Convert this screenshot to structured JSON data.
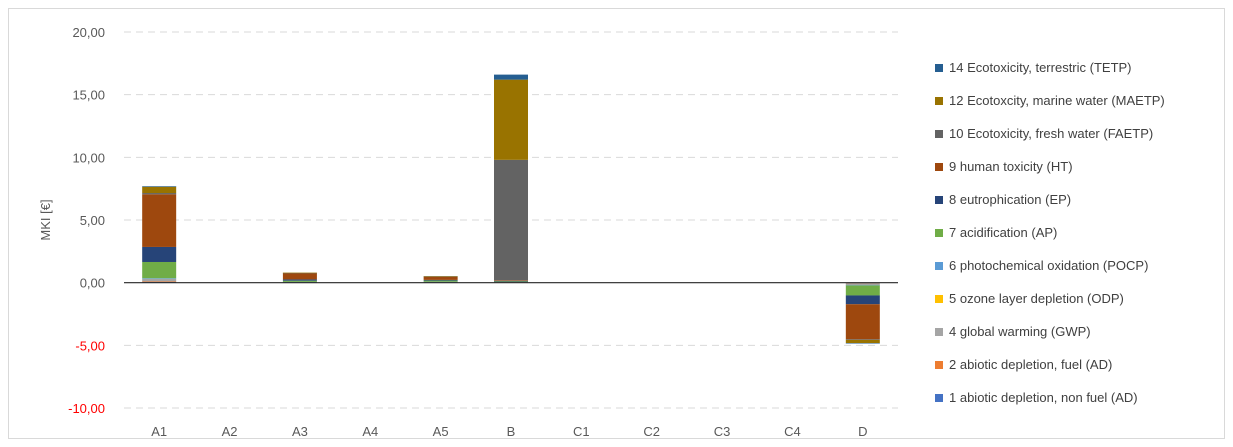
{
  "chart_data": {
    "type": "bar",
    "stacked": true,
    "title": "",
    "xlabel": "",
    "ylabel": "MKI [€]",
    "ylim": [
      -10,
      20
    ],
    "ytick_values": [
      -10,
      -5,
      0,
      5,
      10,
      15,
      20
    ],
    "ytick_labels": [
      "-10,00",
      "-5,00",
      "0,00",
      "5,00",
      "10,00",
      "15,00",
      "20,00"
    ],
    "negative_tick_color": "#ff0000",
    "grid": "horizontal-dashed",
    "legend_position": "right",
    "categories": [
      "A1",
      "A2",
      "A3",
      "A4",
      "A5",
      "B",
      "C1",
      "C2",
      "C3",
      "C4",
      "D"
    ],
    "series": [
      {
        "name": "1 abiotic depletion, non fuel (AD)",
        "color": "#4472c4",
        "values": [
          0.05,
          0,
          0,
          0,
          0,
          0,
          0,
          0,
          0,
          0,
          -0.02
        ]
      },
      {
        "name": "2 abiotic depletion, fuel (AD)",
        "color": "#ed7d31",
        "values": [
          0.05,
          0,
          0.01,
          0,
          0.01,
          0,
          0,
          0,
          0,
          0,
          -0.03
        ]
      },
      {
        "name": "4 global warming (GWP)",
        "color": "#a5a5a5",
        "values": [
          0.2,
          0,
          0.04,
          0,
          0.05,
          0.05,
          0,
          0,
          0,
          0,
          -0.15
        ]
      },
      {
        "name": "5 ozone layer depletion (ODP)",
        "color": "#ffc000",
        "values": [
          0.0,
          0,
          0,
          0,
          0,
          0,
          0,
          0,
          0,
          0,
          0
        ]
      },
      {
        "name": "6 photochemical oxidation (POCP)",
        "color": "#5b9bd5",
        "values": [
          0.05,
          0,
          0.01,
          0,
          0.01,
          0,
          0,
          0,
          0,
          0,
          -0.02
        ]
      },
      {
        "name": "7 acidification (AP)",
        "color": "#70ad47",
        "values": [
          1.3,
          0,
          0.1,
          0,
          0.1,
          0.05,
          0,
          0,
          0,
          0,
          -0.8
        ]
      },
      {
        "name": "8 eutrophication (EP)",
        "color": "#264478",
        "values": [
          1.2,
          0,
          0.1,
          0,
          0.05,
          0.05,
          0,
          0,
          0,
          0,
          -0.7
        ]
      },
      {
        "name": "9 human toxicity (HT)",
        "color": "#9e480e",
        "values": [
          4.2,
          0,
          0.5,
          0,
          0.25,
          0.05,
          0,
          0,
          0,
          0,
          -2.8
        ]
      },
      {
        "name": "10 Ecotoxicity, fresh water (FAETP)",
        "color": "#636363",
        "values": [
          0.1,
          0,
          0.02,
          0,
          0.02,
          9.6,
          0,
          0,
          0,
          0,
          -0.05
        ]
      },
      {
        "name": "12 Ecotoxcity, marine water (MAETP)",
        "color": "#997300",
        "values": [
          0.5,
          0,
          0.02,
          0,
          0.03,
          6.4,
          0,
          0,
          0,
          0,
          -0.25
        ]
      },
      {
        "name": "14 Ecotoxicity, terrestric (TETP)",
        "color": "#255e91",
        "values": [
          0.05,
          0,
          0,
          0,
          0,
          0.4,
          0,
          0,
          0,
          0,
          -0.01
        ]
      }
    ]
  }
}
